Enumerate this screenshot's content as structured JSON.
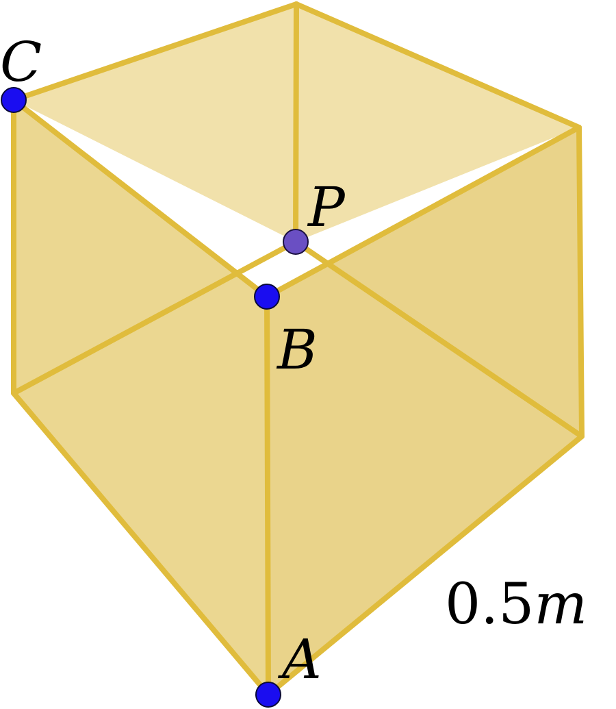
{
  "diagram": {
    "points": {
      "A": "A",
      "B": "B",
      "C": "C",
      "P": "P"
    },
    "edge_label": "0.5",
    "edge_unit": "m"
  },
  "colors": {
    "edge": "#e0bc3c",
    "face_light": "#f0dfa6",
    "face_mid": "#ead58b",
    "face_dark": "#e8d184",
    "point": "#1a0df0",
    "point_p": "#6a4fc3"
  }
}
